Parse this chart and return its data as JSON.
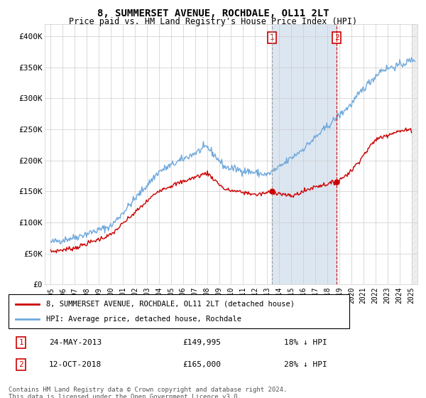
{
  "title": "8, SUMMERSET AVENUE, ROCHDALE, OL11 2LT",
  "subtitle": "Price paid vs. HM Land Registry's House Price Index (HPI)",
  "hpi_color": "#6fa8dc",
  "property_color": "#cc0000",
  "sale1_date": "24-MAY-2013",
  "sale1_price": 149995,
  "sale1_year": 2013.39,
  "sale2_date": "12-OCT-2018",
  "sale2_price": 165000,
  "sale2_year": 2018.78,
  "ylim": [
    0,
    420000
  ],
  "yticks": [
    0,
    50000,
    100000,
    150000,
    200000,
    250000,
    300000,
    350000,
    400000
  ],
  "ytick_labels": [
    "£0",
    "£50K",
    "£100K",
    "£150K",
    "£200K",
    "£250K",
    "£300K",
    "£350K",
    "£400K"
  ],
  "xlim_start": 1994.5,
  "xlim_end": 2025.5,
  "legend_property": "8, SUMMERSET AVENUE, ROCHDALE, OL11 2LT (detached house)",
  "legend_hpi": "HPI: Average price, detached house, Rochdale",
  "footnote1": "Contains HM Land Registry data © Crown copyright and database right 2024.",
  "footnote2": "This data is licensed under the Open Government Licence v3.0.",
  "shade_color": "#dce6f1",
  "sale1_note": "18% ↓ HPI",
  "sale2_note": "28% ↓ HPI",
  "bg_color": "#f5f5f5"
}
